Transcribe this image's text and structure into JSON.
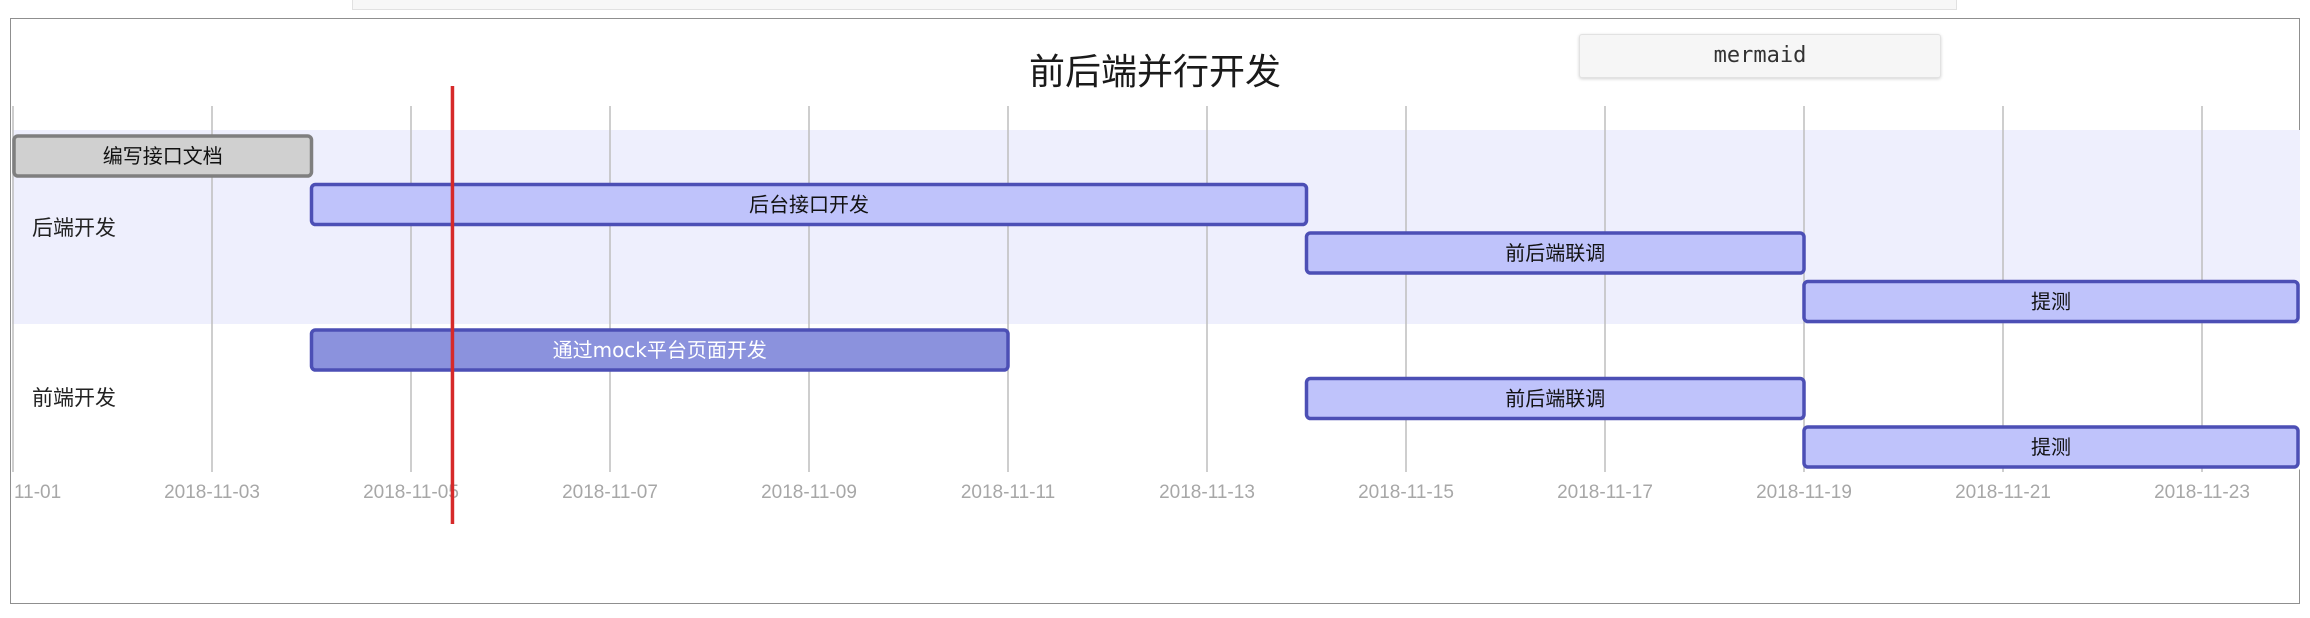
{
  "badge": {
    "text": "mermaid"
  },
  "colors": {
    "task_fill": "#bfc3fb",
    "task_stroke": "#4c4fb5",
    "active_fill": "#8b92dd",
    "done_fill": "#d0d0d0",
    "done_stroke": "#7f7f7f",
    "today_line": "#d62a2a"
  },
  "chart_data": {
    "type": "gantt",
    "title": "前后端并行开发",
    "today": "2018-11-05T10:00",
    "x_range": [
      "2018-11-01",
      "2018-11-24"
    ],
    "ticks": [
      {
        "date": "2018-11-01",
        "label": "11-01"
      },
      {
        "date": "2018-11-03",
        "label": "2018-11-03"
      },
      {
        "date": "2018-11-05",
        "label": "2018-11-05"
      },
      {
        "date": "2018-11-07",
        "label": "2018-11-07"
      },
      {
        "date": "2018-11-09",
        "label": "2018-11-09"
      },
      {
        "date": "2018-11-11",
        "label": "2018-11-11"
      },
      {
        "date": "2018-11-13",
        "label": "2018-11-13"
      },
      {
        "date": "2018-11-15",
        "label": "2018-11-15"
      },
      {
        "date": "2018-11-17",
        "label": "2018-11-17"
      },
      {
        "date": "2018-11-19",
        "label": "2018-11-19"
      },
      {
        "date": "2018-11-21",
        "label": "2018-11-21"
      },
      {
        "date": "2018-11-23",
        "label": "2018-11-23"
      }
    ],
    "sections": [
      {
        "name": "后端开发",
        "tasks": [
          {
            "name": "编写接口文档",
            "start": "2018-11-01",
            "end": "2018-11-04",
            "status": "done"
          },
          {
            "name": "后台接口开发",
            "start": "2018-11-04",
            "end": "2018-11-14",
            "status": "normal"
          },
          {
            "name": "前后端联调",
            "start": "2018-11-14",
            "end": "2018-11-19",
            "status": "normal"
          },
          {
            "name": "提测",
            "start": "2018-11-19",
            "end": "2018-11-24",
            "status": "normal"
          }
        ]
      },
      {
        "name": "前端开发",
        "tasks": [
          {
            "name": "通过mock平台页面开发",
            "start": "2018-11-04",
            "end": "2018-11-11",
            "status": "active"
          },
          {
            "name": "前后端联调",
            "start": "2018-11-14",
            "end": "2018-11-19",
            "status": "normal"
          },
          {
            "name": "提测",
            "start": "2018-11-19",
            "end": "2018-11-24",
            "status": "normal"
          }
        ]
      }
    ]
  }
}
